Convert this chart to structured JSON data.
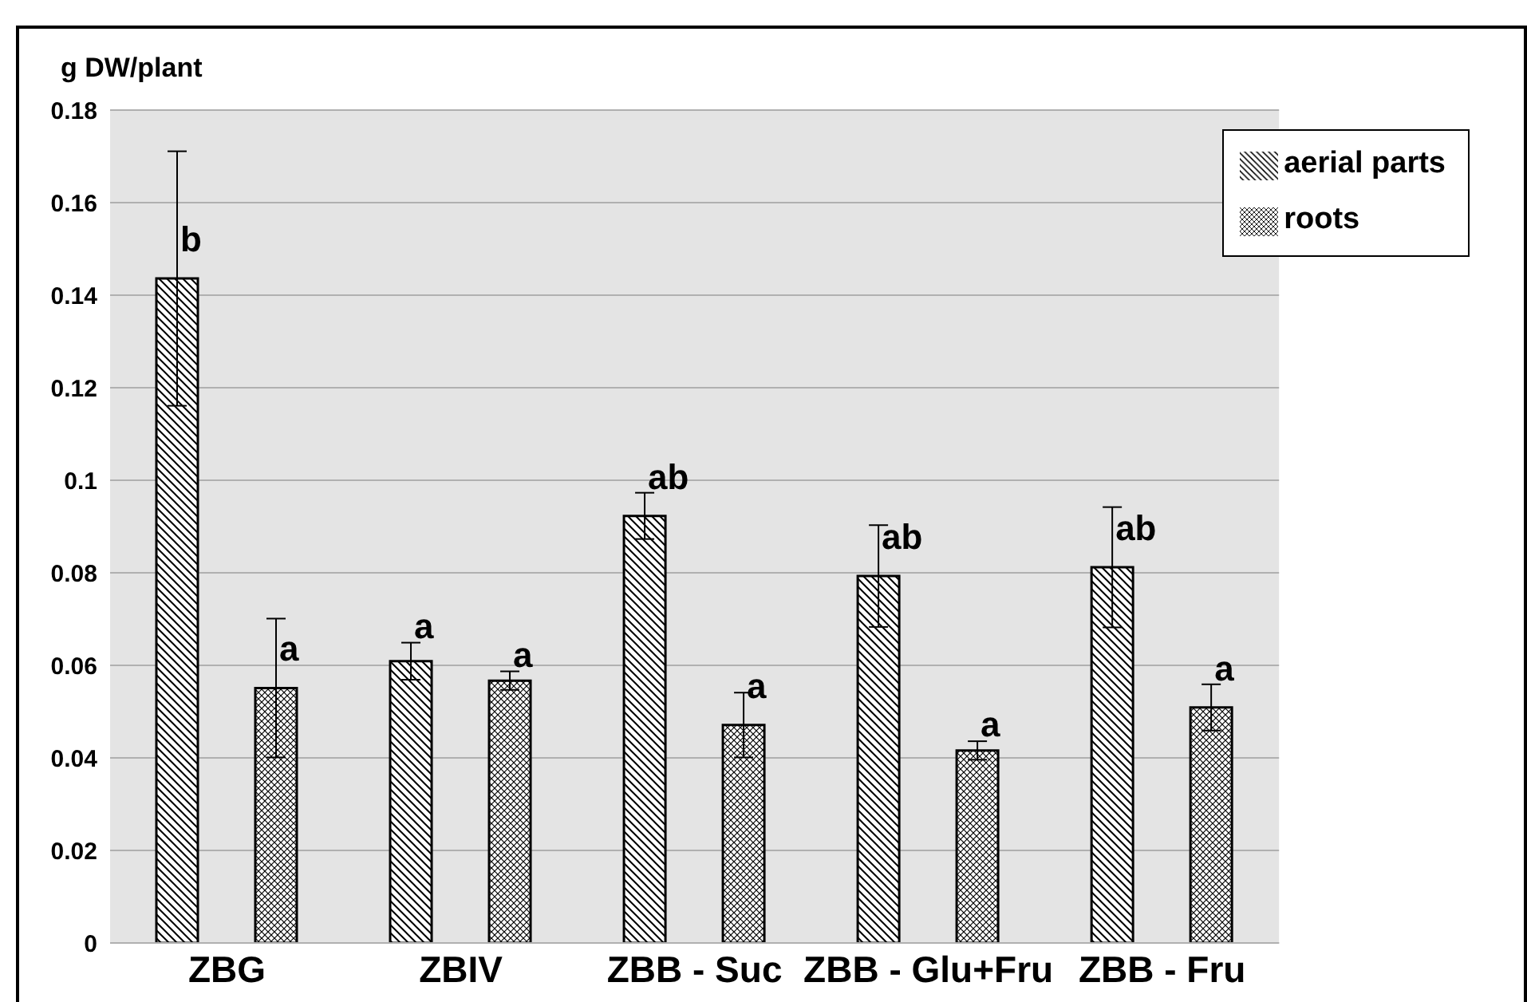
{
  "chart_data": {
    "type": "bar",
    "ylabel": "g DW/plant",
    "categories": [
      "ZBG",
      "ZBIV",
      "ZBB - Suc",
      "ZBB - Glu+Fru",
      "ZBB - Fru"
    ],
    "series": [
      {
        "name": "aerial parts",
        "color": "#000000",
        "values": [
          0.1436,
          0.0609,
          0.0923,
          0.0793,
          0.0812
        ],
        "errors": [
          0.0275,
          0.004,
          0.005,
          0.011,
          0.013
        ],
        "value_labels": [
          "b",
          "a",
          "ab",
          "ab",
          "ab"
        ]
      },
      {
        "name": "roots",
        "color": "#000000",
        "values": [
          0.0551,
          0.0567,
          0.0471,
          0.0416,
          0.0509
        ],
        "errors": [
          0.015,
          0.002,
          0.007,
          0.002,
          0.005
        ],
        "value_labels": [
          "a",
          "a",
          "a",
          "a",
          "a"
        ]
      }
    ],
    "ylim": [
      0,
      0.18
    ],
    "yticks": [
      0,
      0.02,
      0.04,
      0.06,
      0.08,
      0.1,
      0.12,
      0.14,
      0.16,
      0.18
    ],
    "grid": "y",
    "legend": "top right"
  }
}
